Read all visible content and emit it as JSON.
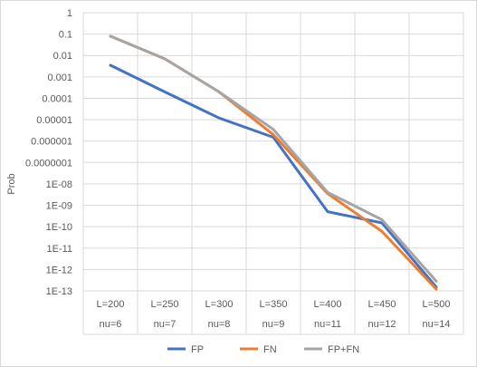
{
  "chart_data": {
    "type": "line",
    "title": "",
    "xlabel": "",
    "ylabel": "Prob",
    "y_scale": "log",
    "ylim": [
      1e-13,
      1
    ],
    "y_ticks": [
      "1E-13",
      "1E-12",
      "1E-11",
      "1E-10",
      "1E-09",
      "1E-08",
      "0.0000001",
      "0.000001",
      "0.00001",
      "0.0001",
      "0.001",
      "0.01",
      "0.1",
      "1"
    ],
    "categories": [
      {
        "L": "L=200",
        "nu": "nu=6"
      },
      {
        "L": "L=250",
        "nu": "nu=7"
      },
      {
        "L": "L=300",
        "nu": "nu=8"
      },
      {
        "L": "L=350",
        "nu": "nu=9"
      },
      {
        "L": "L=400",
        "nu": "nu=11"
      },
      {
        "L": "L=450",
        "nu": "nu=12"
      },
      {
        "L": "L=500",
        "nu": "nu=14"
      }
    ],
    "series": [
      {
        "name": "FP",
        "color": "#4472c4",
        "values": [
          0.0035,
          0.0002,
          1.2e-05,
          1.5e-06,
          5e-10,
          1.5e-10,
          1.5e-13
        ]
      },
      {
        "name": "FN",
        "color": "#ed7d31",
        "values": [
          0.08,
          0.007,
          0.0002,
          2e-06,
          3.5e-09,
          6e-11,
          1.2e-13
        ]
      },
      {
        "name": "FP+FN",
        "color": "#a5a5a5",
        "values": [
          0.08,
          0.007,
          0.0002,
          3.5e-06,
          4e-09,
          2.1e-10,
          2.8e-13
        ]
      }
    ],
    "grid": true,
    "legend_position": "bottom"
  }
}
